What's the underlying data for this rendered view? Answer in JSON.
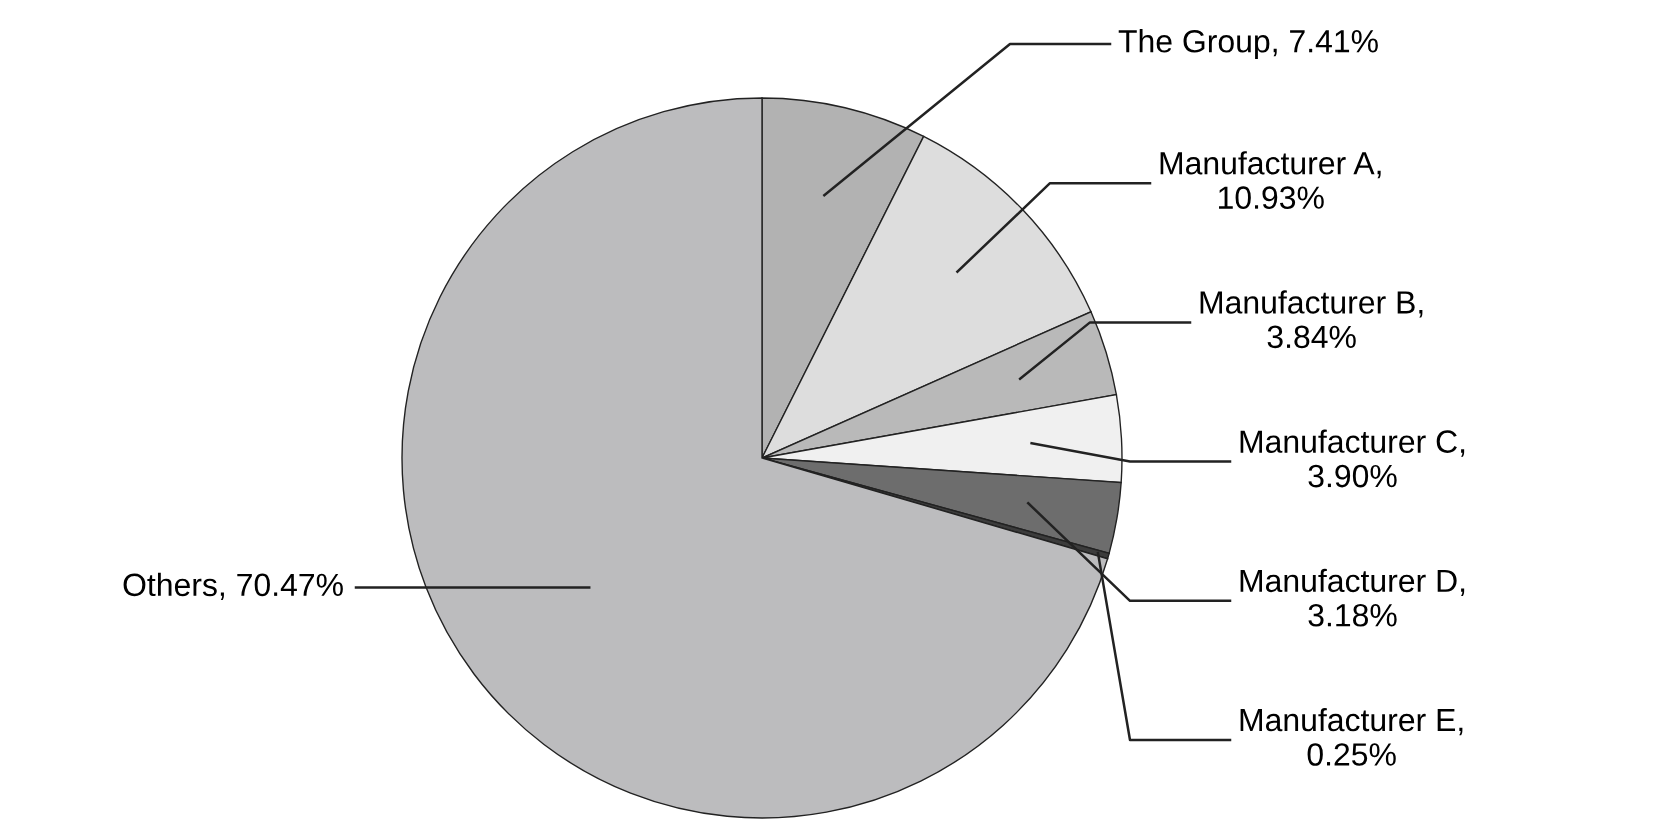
{
  "chart_data": {
    "type": "pie",
    "categories": [
      "The Group, 7.41%",
      "Manufacturer A, 10.93%",
      "Manufacturer B, 3.84%",
      "Manufacturer C, 3.90%",
      "Manufacturer D, 3.18%",
      "Manufacturer E, 0.25%",
      "Others, 70.47%"
    ],
    "values": [
      7.41,
      10.93,
      3.84,
      3.9,
      3.18,
      0.25,
      70.47
    ],
    "colors": [
      "#b2b2b2",
      "#dddddd",
      "#b9b9b9",
      "#f0f0f0",
      "#6d6d6d",
      "#3c3c3c",
      "#bcbcbe"
    ]
  }
}
